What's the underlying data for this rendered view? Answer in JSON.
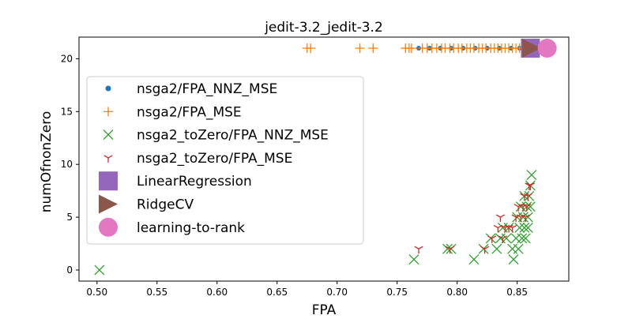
{
  "chart_data": {
    "type": "scatter",
    "title": "jedit-3.2_jedit-3.2",
    "xlabel": "FPA",
    "ylabel": "numOfnonZero",
    "xlim": [
      0.485,
      0.893
    ],
    "ylim": [
      -1.05,
      22.05
    ],
    "x_ticks": [
      0.5,
      0.55,
      0.6,
      0.65,
      0.7,
      0.75,
      0.8,
      0.85
    ],
    "x_tick_labels": [
      "0.50",
      "0.55",
      "0.60",
      "0.65",
      "0.70",
      "0.75",
      "0.80",
      "0.85"
    ],
    "y_ticks": [
      0,
      5,
      10,
      15,
      20
    ],
    "y_tick_labels": [
      "0",
      "5",
      "10",
      "15",
      "20"
    ],
    "grid": false,
    "legend_position": "center-left",
    "series": [
      {
        "name": "nsga2/FPA_NNZ_MSE",
        "marker": "dot",
        "color": "#1f77b4",
        "points": [
          [
            0.768,
            21
          ],
          [
            0.777,
            21
          ],
          [
            0.786,
            21
          ],
          [
            0.795,
            21
          ],
          [
            0.805,
            21
          ],
          [
            0.815,
            21
          ],
          [
            0.825,
            21
          ],
          [
            0.835,
            21
          ],
          [
            0.845,
            21
          ],
          [
            0.852,
            21
          ],
          [
            0.856,
            21
          ]
        ]
      },
      {
        "name": "nsga2/FPA_MSE",
        "marker": "plus",
        "color": "#ff7f0e",
        "points": [
          [
            0.675,
            21
          ],
          [
            0.678,
            21
          ],
          [
            0.719,
            21
          ],
          [
            0.73,
            21
          ],
          [
            0.757,
            21
          ],
          [
            0.76,
            21
          ],
          [
            0.762,
            21
          ],
          [
            0.771,
            21
          ],
          [
            0.775,
            21
          ],
          [
            0.779,
            21
          ],
          [
            0.783,
            21
          ],
          [
            0.787,
            21
          ],
          [
            0.79,
            21
          ],
          [
            0.794,
            21
          ],
          [
            0.797,
            21
          ],
          [
            0.801,
            21
          ],
          [
            0.804,
            21
          ],
          [
            0.808,
            21
          ],
          [
            0.811,
            21
          ],
          [
            0.814,
            21
          ],
          [
            0.818,
            21
          ],
          [
            0.821,
            21
          ],
          [
            0.824,
            21
          ],
          [
            0.828,
            21
          ],
          [
            0.831,
            21
          ],
          [
            0.834,
            21
          ],
          [
            0.837,
            21
          ],
          [
            0.84,
            21
          ],
          [
            0.843,
            21
          ],
          [
            0.846,
            21
          ],
          [
            0.849,
            21
          ],
          [
            0.852,
            21
          ],
          [
            0.855,
            21
          ],
          [
            0.857,
            21
          ],
          [
            0.859,
            21
          ]
        ]
      },
      {
        "name": "nsga2_toZero/FPA_NNZ_MSE",
        "marker": "x",
        "color": "#2ca02c",
        "points": [
          [
            0.502,
            0
          ],
          [
            0.764,
            1
          ],
          [
            0.792,
            2
          ],
          [
            0.795,
            2
          ],
          [
            0.814,
            1
          ],
          [
            0.822,
            2
          ],
          [
            0.828,
            3
          ],
          [
            0.833,
            2
          ],
          [
            0.836,
            3
          ],
          [
            0.838,
            4
          ],
          [
            0.841,
            3
          ],
          [
            0.843,
            4
          ],
          [
            0.846,
            2
          ],
          [
            0.847,
            1
          ],
          [
            0.849,
            3
          ],
          [
            0.85,
            5
          ],
          [
            0.851,
            2
          ],
          [
            0.852,
            4
          ],
          [
            0.853,
            6
          ],
          [
            0.854,
            3
          ],
          [
            0.855,
            5
          ],
          [
            0.856,
            4
          ],
          [
            0.856,
            7
          ],
          [
            0.857,
            3
          ],
          [
            0.858,
            6
          ],
          [
            0.859,
            4
          ],
          [
            0.859,
            5
          ],
          [
            0.86,
            7
          ],
          [
            0.861,
            8
          ],
          [
            0.861,
            6
          ],
          [
            0.862,
            9
          ]
        ]
      },
      {
        "name": "nsga2_toZero/FPA_MSE",
        "marker": "tri_down",
        "color": "#d62728",
        "points": [
          [
            0.768,
            2
          ],
          [
            0.794,
            2
          ],
          [
            0.823,
            2
          ],
          [
            0.829,
            3
          ],
          [
            0.834,
            4
          ],
          [
            0.836,
            5
          ],
          [
            0.838,
            3
          ],
          [
            0.84,
            4
          ],
          [
            0.843,
            4
          ],
          [
            0.846,
            4
          ],
          [
            0.849,
            5
          ],
          [
            0.851,
            6
          ],
          [
            0.853,
            5
          ],
          [
            0.855,
            6
          ],
          [
            0.856,
            7
          ],
          [
            0.857,
            5
          ],
          [
            0.858,
            6
          ],
          [
            0.859,
            7
          ],
          [
            0.86,
            8
          ],
          [
            0.861,
            8
          ]
        ]
      },
      {
        "name": "LinearRegression",
        "marker": "square",
        "color": "#9467bd",
        "points": [
          [
            0.861,
            21
          ]
        ]
      },
      {
        "name": "RidgeCV",
        "marker": "triangle_right",
        "color": "#8c564b",
        "points": [
          [
            0.862,
            21
          ]
        ]
      },
      {
        "name": "learning-to-rank",
        "marker": "circle",
        "color": "#e377c2",
        "points": [
          [
            0.875,
            21
          ]
        ]
      }
    ]
  }
}
